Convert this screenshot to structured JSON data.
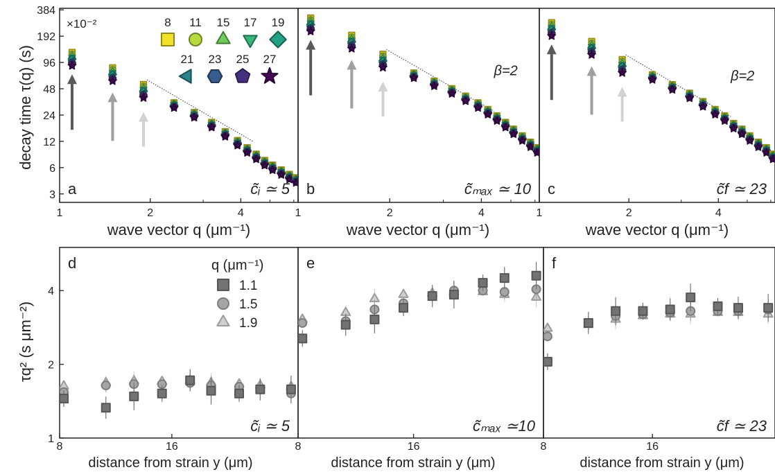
{
  "figure": {
    "top_ylabel": "decay time τ(q) (s)",
    "top_xlabel": "wave vector q (μm⁻¹)",
    "bottom_ylabel": "τq² (s μm⁻²)",
    "bottom_xlabel": "distance from strain y (μm)",
    "scale_note": "×10⁻²",
    "legend_top_values": [
      "8",
      "11",
      "15",
      "17",
      "19",
      "21",
      "23",
      "25",
      "27"
    ],
    "legend_bottom_title": "q (μm⁻¹)",
    "legend_bottom_values": [
      "1.1",
      "1.5",
      "1.9"
    ],
    "colors": {
      "top_series": [
        "#f1e12c",
        "#b5dc3c",
        "#6fcc5a",
        "#36b779",
        "#22a186",
        "#2a8489",
        "#3a5c8c",
        "#45317d",
        "#440a58"
      ],
      "bottom_series": [
        "#737373",
        "#a6a6a6",
        "#cfcfcf"
      ],
      "arrows": [
        "#5a5a5a",
        "#a0a0a0",
        "#d2d2d2"
      ]
    }
  },
  "chart_data": [
    {
      "panel": "a",
      "type": "scatter",
      "xscale": "log",
      "yscale": "log",
      "xlim": [
        1,
        6.2
      ],
      "ylim": [
        2.4,
        400
      ],
      "xticks": [
        "1",
        "2",
        "4"
      ],
      "yticks": [
        "3",
        "6",
        "12",
        "24",
        "48",
        "96",
        "192",
        "384"
      ],
      "annotation": "c̃ᵢ ≃ 5",
      "q": [
        1.1,
        1.5,
        1.9,
        2.4,
        2.8,
        3.2,
        3.55,
        3.9,
        4.2,
        4.5,
        4.8,
        5.1,
        5.45,
        5.8,
        6.1
      ],
      "tau": [
        105,
        70,
        45,
        31,
        24,
        18.5,
        14.5,
        11.5,
        9.5,
        8,
        6.8,
        6,
        5.3,
        4.7,
        4.3
      ],
      "beta_label": ""
    },
    {
      "panel": "b",
      "type": "scatter",
      "xscale": "log",
      "yscale": "log",
      "xlim": [
        1,
        6.2
      ],
      "ylim": [
        2.4,
        400
      ],
      "xticks": [
        "1",
        "2",
        "4"
      ],
      "yticks": [],
      "annotation": "c̃ₘₐₓ ≃ 10",
      "q": [
        1.1,
        1.5,
        1.9,
        2.4,
        2.8,
        3.2,
        3.55,
        3.9,
        4.2,
        4.5,
        4.8,
        5.1,
        5.45,
        5.8,
        6.1
      ],
      "tau": [
        260,
        165,
        100,
        68,
        55,
        45,
        37,
        31,
        26,
        22,
        18.5,
        15.5,
        13,
        11,
        9.5
      ],
      "beta_label": "β=2"
    },
    {
      "panel": "c",
      "type": "scatter",
      "xscale": "log",
      "yscale": "log",
      "xlim": [
        1,
        6.2
      ],
      "ylim": [
        2.4,
        400
      ],
      "xticks": [
        "1",
        "2",
        "4"
      ],
      "yticks": [],
      "annotation": "c̃f ≃ 23",
      "q": [
        1.1,
        1.5,
        1.9,
        2.4,
        2.8,
        3.2,
        3.55,
        3.9,
        4.2,
        4.5,
        4.8,
        5.1,
        5.45,
        5.8,
        6.1
      ],
      "tau": [
        230,
        140,
        87,
        65,
        50,
        40,
        32,
        26,
        22,
        18,
        15.5,
        13,
        11,
        9.5,
        8
      ],
      "beta_label": "β=2"
    },
    {
      "panel": "d",
      "type": "scatter",
      "yscale": "log",
      "xlim": [
        8,
        25
      ],
      "ylim": [
        1,
        6
      ],
      "xticks": [
        "8",
        "16"
      ],
      "yticks": [
        "1",
        "2",
        "4"
      ],
      "annotation": "c̃ᵢ ≃ 5",
      "y_distance": [
        8.3,
        11.3,
        13.3,
        15.3,
        17.3,
        18.8,
        20.8,
        22.3,
        24.5
      ],
      "series": [
        {
          "q": "1.1",
          "values": [
            1.45,
            1.33,
            1.48,
            1.52,
            1.72,
            1.56,
            1.52,
            1.58,
            1.58
          ]
        },
        {
          "q": "1.5",
          "values": [
            1.54,
            1.64,
            1.66,
            1.66,
            1.68,
            1.64,
            1.62,
            1.58,
            1.52
          ]
        },
        {
          "q": "1.9",
          "values": [
            1.63,
            1.68,
            1.71,
            1.7,
            1.72,
            1.68,
            1.66,
            1.64,
            1.62
          ]
        }
      ]
    },
    {
      "panel": "e",
      "type": "scatter",
      "yscale": "log",
      "xlim": [
        8,
        25
      ],
      "ylim": [
        1,
        6
      ],
      "xticks": [
        "8",
        "16"
      ],
      "yticks": [],
      "annotation": "c̃ₘₐₓ ≃10",
      "y_distance": [
        8.3,
        11.3,
        13.3,
        15.3,
        17.3,
        18.8,
        20.8,
        22.3,
        24.5
      ],
      "series": [
        {
          "q": "1.1",
          "values": [
            2.55,
            2.9,
            3.05,
            3.4,
            3.8,
            3.85,
            4.3,
            4.5,
            4.6
          ]
        },
        {
          "q": "1.5",
          "values": [
            2.95,
            3.0,
            3.35,
            3.55,
            3.8,
            4.0,
            4.0,
            3.95,
            4.05
          ]
        },
        {
          "q": "1.9",
          "values": [
            3.05,
            3.25,
            3.7,
            3.85,
            3.9,
            3.95,
            3.95,
            3.85,
            3.75
          ]
        }
      ]
    },
    {
      "panel": "f",
      "type": "scatter",
      "yscale": "log",
      "xlim": [
        8,
        25
      ],
      "ylim": [
        1,
        6
      ],
      "xticks": [
        "8",
        "16"
      ],
      "yticks": [],
      "annotation": "c̃f ≃ 23",
      "y_distance": [
        8.3,
        11.3,
        13.3,
        15.3,
        17.3,
        18.8,
        20.8,
        22.3,
        24.5
      ],
      "series": [
        {
          "q": "1.1",
          "values": [
            2.05,
            2.95,
            3.3,
            3.3,
            3.35,
            3.75,
            3.45,
            3.4,
            3.4
          ]
        },
        {
          "q": "1.5",
          "values": [
            2.6,
            2.95,
            3.15,
            3.2,
            3.25,
            3.3,
            3.3,
            3.3,
            3.35
          ]
        },
        {
          "q": "1.9",
          "values": [
            2.8,
            2.9,
            3.05,
            3.15,
            3.2,
            3.2,
            3.25,
            3.25,
            3.2
          ]
        }
      ]
    }
  ]
}
